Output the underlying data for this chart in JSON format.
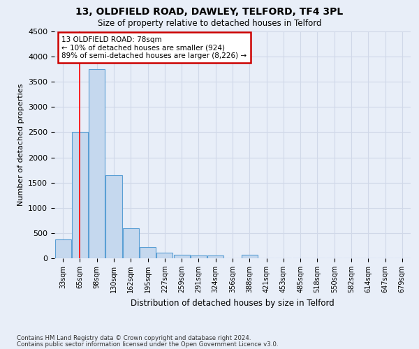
{
  "title1": "13, OLDFIELD ROAD, DAWLEY, TELFORD, TF4 3PL",
  "title2": "Size of property relative to detached houses in Telford",
  "xlabel": "Distribution of detached houses by size in Telford",
  "ylabel": "Number of detached properties",
  "categories": [
    "33sqm",
    "65sqm",
    "98sqm",
    "130sqm",
    "162sqm",
    "195sqm",
    "227sqm",
    "259sqm",
    "291sqm",
    "324sqm",
    "356sqm",
    "388sqm",
    "421sqm",
    "453sqm",
    "485sqm",
    "518sqm",
    "550sqm",
    "582sqm",
    "614sqm",
    "647sqm",
    "679sqm"
  ],
  "values": [
    370,
    2500,
    3750,
    1650,
    590,
    225,
    110,
    65,
    55,
    50,
    0,
    65,
    0,
    0,
    0,
    0,
    0,
    0,
    0,
    0,
    0
  ],
  "bar_color": "#c5d8ee",
  "bar_edge_color": "#5a9fd4",
  "grid_color": "#d0d8e8",
  "background_color": "#e8eef8",
  "red_line_x": 1.0,
  "annotation_line1": "13 OLDFIELD ROAD: 78sqm",
  "annotation_line2": "← 10% of detached houses are smaller (924)",
  "annotation_line3": "89% of semi-detached houses are larger (8,226) →",
  "annotation_box_color": "#ffffff",
  "annotation_border_color": "#cc0000",
  "footnote1": "Contains HM Land Registry data © Crown copyright and database right 2024.",
  "footnote2": "Contains public sector information licensed under the Open Government Licence v3.0.",
  "ylim": [
    0,
    4500
  ],
  "yticks": [
    0,
    500,
    1000,
    1500,
    2000,
    2500,
    3000,
    3500,
    4000,
    4500
  ]
}
